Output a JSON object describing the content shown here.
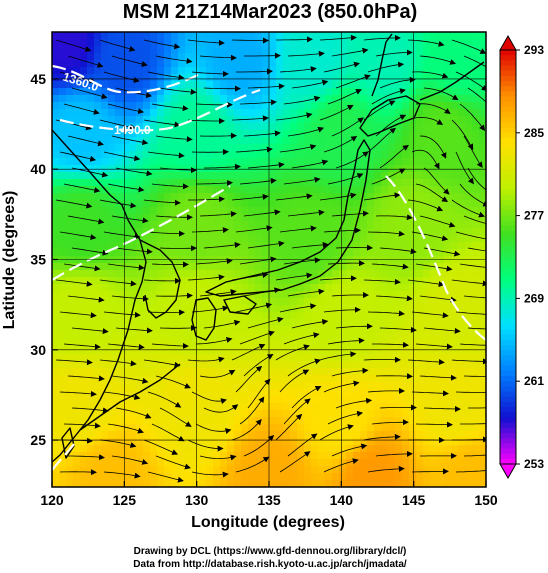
{
  "chart_data": {
    "type": "heatmap",
    "title": "MSM 21Z14Mar2023 (850.0hPa)",
    "xlabel": "Longitude (degrees)",
    "ylabel": "Latitude  (degrees)",
    "xlim": [
      120,
      150
    ],
    "ylim": [
      22.4,
      47.6
    ],
    "x_ticks": [
      "120",
      "125",
      "130",
      "135",
      "140",
      "145",
      "150"
    ],
    "y_ticks": [
      "25",
      "30",
      "35",
      "40",
      "45"
    ],
    "grid": true,
    "field": "temperature (K), shaded",
    "overlays": [
      "coastlines",
      "wind streamlines",
      "geopotential height contours (white)"
    ],
    "contour_labels": [
      "1360.0",
      "1490.0"
    ],
    "colorbar": {
      "min": 253,
      "max": 293,
      "ticks": [
        "293",
        "285",
        "277",
        "269",
        "261",
        "253"
      ],
      "colors": [
        "#ff00ff",
        "#1010d0",
        "#0080ff",
        "#00e0ff",
        "#00ff80",
        "#40e020",
        "#c0f000",
        "#ffe000",
        "#ff9000",
        "#e00000"
      ]
    },
    "temperature_samples": [
      {
        "lon": 121,
        "lat": 47,
        "value": 257
      },
      {
        "lon": 125,
        "lat": 46,
        "value": 260
      },
      {
        "lon": 133,
        "lat": 46,
        "value": 264
      },
      {
        "lon": 138,
        "lat": 46,
        "value": 268
      },
      {
        "lon": 143,
        "lat": 46,
        "value": 269
      },
      {
        "lon": 148,
        "lat": 46,
        "value": 271
      },
      {
        "lon": 122,
        "lat": 42,
        "value": 265
      },
      {
        "lon": 130,
        "lat": 42,
        "value": 270
      },
      {
        "lon": 140,
        "lat": 42,
        "value": 273
      },
      {
        "lon": 147,
        "lat": 42,
        "value": 276
      },
      {
        "lon": 122,
        "lat": 37,
        "value": 275
      },
      {
        "lon": 130,
        "lat": 37,
        "value": 277
      },
      {
        "lon": 138,
        "lat": 36,
        "value": 276
      },
      {
        "lon": 145,
        "lat": 37,
        "value": 278
      },
      {
        "lon": 122,
        "lat": 32,
        "value": 280
      },
      {
        "lon": 130,
        "lat": 32,
        "value": 280
      },
      {
        "lon": 140,
        "lat": 32,
        "value": 280
      },
      {
        "lon": 148,
        "lat": 32,
        "value": 281
      },
      {
        "lon": 122,
        "lat": 27,
        "value": 283
      },
      {
        "lon": 130,
        "lat": 27,
        "value": 283
      },
      {
        "lon": 140,
        "lat": 26,
        "value": 284
      },
      {
        "lon": 148,
        "lat": 27,
        "value": 283
      },
      {
        "lon": 124,
        "lat": 23,
        "value": 286
      },
      {
        "lon": 135,
        "lat": 23,
        "value": 287
      },
      {
        "lon": 142,
        "lat": 23,
        "value": 288
      },
      {
        "lon": 149,
        "lat": 23,
        "value": 286
      }
    ]
  },
  "credits": {
    "line1": "Drawing by DCL (https://www.gfd-dennou.org/library/dcl/)",
    "line2": "Data from http://database.rish.kyoto-u.ac.jp/arch/jmadata/"
  }
}
